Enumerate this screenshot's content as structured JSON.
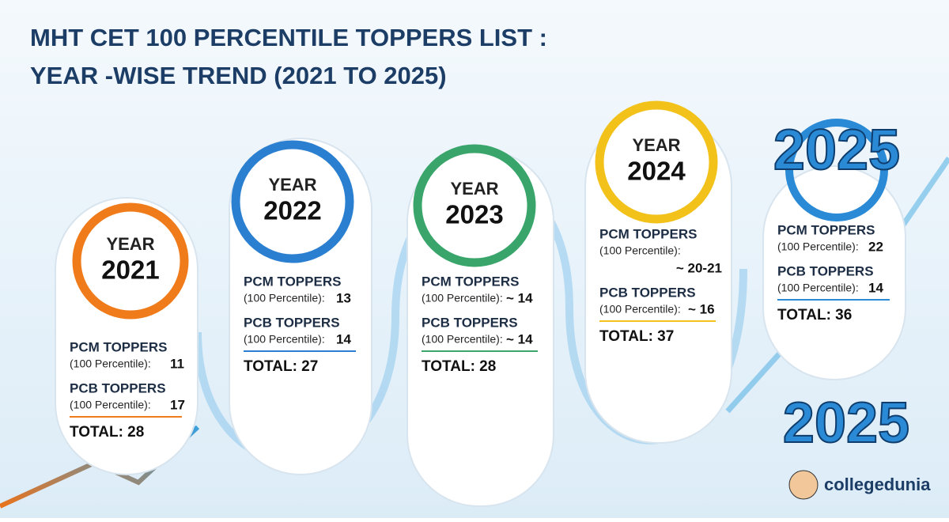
{
  "header": {
    "title_lines": [
      "MHT CET 100 PERCENTILE TOPPERS LIST :",
      "YEAR -WISE TREND (2021 TO 2025)"
    ]
  },
  "cards": [
    {
      "year_label": "YEAR",
      "year": "2021",
      "pcm_label": "PCM TOPPERS",
      "pcm_sub": "(100 Percentile):",
      "pcm_value": "11",
      "pcb_label": "PCB TOPPERS",
      "pcb_sub": "(100 Percentile):",
      "pcb_value": "17",
      "total": "TOTAL: 28"
    },
    {
      "year_label": "YEAR",
      "year": "2022",
      "pcm_label": "PCM TOPPERS",
      "pcm_sub": "(100 Percentile):",
      "pcm_value": "13",
      "pcb_label": "PCB TOPPERS",
      "pcb_sub": "(100 Percentile):",
      "pcb_value": "14",
      "total": "TOTAL: 27"
    },
    {
      "year_label": "YEAR",
      "year": "2023",
      "pcm_label": "PCM TOPPERS",
      "pcm_sub": "(100 Percentile):",
      "pcm_value": "~ 14",
      "pcb_label": "PCB TOPPERS",
      "pcb_sub": "(100 Percentile):",
      "pcb_value": "~ 14",
      "total": "TOTAL: 28"
    },
    {
      "year_label": "YEAR",
      "year": "2024",
      "pcm_label": "PCM TOPPERS",
      "pcm_sub": "(100 Percentile):",
      "pcm_value": "~ 20-21",
      "pcb_label": "PCB TOPPERS",
      "pcb_sub": "(100 Percentile):",
      "pcb_value": "~ 16",
      "total": "TOTAL: 37"
    },
    {
      "year": "2025",
      "pcm_label": "PCM TOPPERS",
      "pcm_sub": "(100 Percentile):",
      "pcm_value": "22",
      "pcb_label": "PCB TOPPERS",
      "pcb_sub": "(100 Percentile):",
      "pcb_value": "14",
      "total": "TOTAL: 36"
    }
  ],
  "decor": {
    "bottom_year": "2025"
  },
  "brand": "collegedunia"
}
